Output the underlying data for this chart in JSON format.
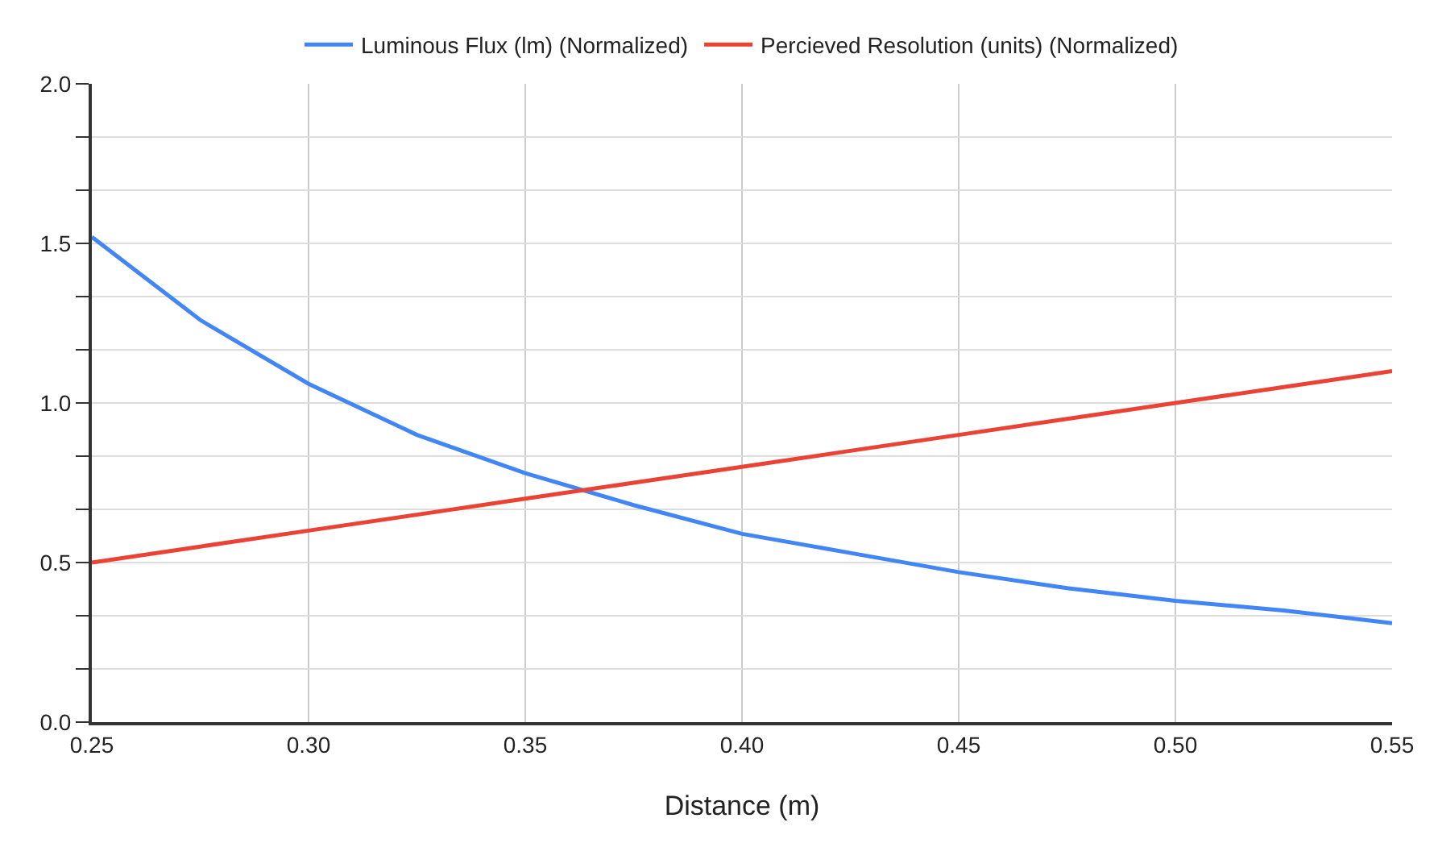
{
  "chart_data": {
    "type": "line",
    "xlabel": "Distance (m)",
    "x": [
      0.25,
      0.275,
      0.3,
      0.325,
      0.35,
      0.375,
      0.4,
      0.425,
      0.45,
      0.475,
      0.5,
      0.525,
      0.55
    ],
    "series": [
      {
        "name": "Luminous Flux (lm) (Normalized)",
        "color": "#4285f4",
        "values": [
          1.52,
          1.26,
          1.06,
          0.9,
          0.78,
          0.68,
          0.59,
          0.53,
          0.47,
          0.42,
          0.38,
          0.35,
          0.31
        ]
      },
      {
        "name": "Percieved Resolution (units) (Normalized)",
        "color": "#ea4335",
        "values": [
          0.5,
          0.55,
          0.6,
          0.65,
          0.7,
          0.75,
          0.8,
          0.85,
          0.9,
          0.95,
          1.0,
          1.05,
          1.1
        ]
      }
    ],
    "xlim": [
      0.25,
      0.55
    ],
    "xticks": [
      0.25,
      {
        "value": 0.3,
        "label": "0.30"
      },
      0.35,
      {
        "value": 0.4,
        "label": "0.40"
      },
      0.45,
      {
        "value": 0.5,
        "label": "0.50"
      },
      0.55
    ],
    "ylim": [
      0,
      2
    ],
    "yticks": [
      {
        "value": 0,
        "label": "0.0"
      },
      {
        "value": 0.167,
        "label": null
      },
      {
        "value": 0.333,
        "label": null
      },
      {
        "value": 0.5,
        "label": "0.5"
      },
      {
        "value": 0.667,
        "label": null
      },
      {
        "value": 0.833,
        "label": null
      },
      {
        "value": 1,
        "label": "1.0"
      },
      {
        "value": 1.167,
        "label": null
      },
      {
        "value": 1.333,
        "label": null
      },
      {
        "value": 1.5,
        "label": "1.5"
      },
      {
        "value": 1.667,
        "label": null
      },
      {
        "value": 1.833,
        "label": null
      },
      {
        "value": 2,
        "label": "2.0"
      }
    ],
    "grid": true,
    "legend": "top",
    "marker": "none",
    "line_style": "solid"
  }
}
